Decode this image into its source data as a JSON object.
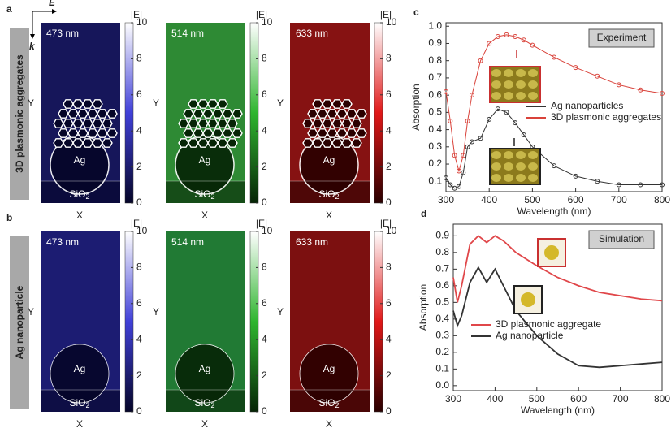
{
  "panels": [
    {
      "label": "a",
      "row_title": "3D plasmonic aggregates",
      "field": "E",
      "direction": "k",
      "aggregate": true,
      "maps": [
        {
          "wavelength": "473 nm",
          "background": "#16165a",
          "colormap": [
            "#050528",
            "#4040d8",
            "#ffffff"
          ]
        },
        {
          "wavelength": "514 nm",
          "background": "#2e8a34",
          "colormap": [
            "#062406",
            "#2fb52f",
            "#ffffff"
          ]
        },
        {
          "wavelength": "633 nm",
          "background": "#861212",
          "colormap": [
            "#2a0000",
            "#e01818",
            "#ffffff"
          ]
        }
      ]
    },
    {
      "label": "b",
      "row_title": "Ag nanoparticle",
      "aggregate": false,
      "maps": [
        {
          "wavelength": "473 nm",
          "background": "#1c1c72",
          "colormap": [
            "#050528",
            "#4040d8",
            "#ffffff"
          ]
        },
        {
          "wavelength": "514 nm",
          "background": "#217a34",
          "colormap": [
            "#062406",
            "#2fb52f",
            "#ffffff"
          ]
        },
        {
          "wavelength": "633 nm",
          "background": "#7c1010",
          "colormap": [
            "#2a0000",
            "#e01818",
            "#ffffff"
          ]
        }
      ]
    }
  ],
  "map_text": {
    "particle": "Ag",
    "substrate": "SiO",
    "substrate_sub": "2",
    "x_label": "X",
    "y_label": "Y",
    "colorbar_title": "|E|",
    "colorbar_lim": [
      0,
      10
    ],
    "colorbar_ticks": [
      0,
      2,
      4,
      6,
      8,
      10
    ]
  },
  "chart_data": [
    {
      "type": "line",
      "panel_label": "c",
      "annotation": "Experiment",
      "x_label": "Wavelength (nm)",
      "y_label": "Absorption",
      "x": [
        300,
        310,
        320,
        330,
        340,
        350,
        360,
        380,
        400,
        420,
        440,
        460,
        480,
        500,
        550,
        600,
        650,
        700,
        750,
        800
      ],
      "series": [
        {
          "name": "Ag nanoparticles",
          "color": "#333333",
          "values": [
            0.12,
            0.08,
            0.06,
            0.07,
            0.15,
            0.3,
            0.33,
            0.35,
            0.46,
            0.52,
            0.5,
            0.44,
            0.37,
            0.3,
            0.19,
            0.13,
            0.1,
            0.08,
            0.08,
            0.08
          ]
        },
        {
          "name": "3D plasmonic aggregates",
          "color": "#d9423a",
          "values": [
            0.62,
            0.45,
            0.25,
            0.16,
            0.25,
            0.45,
            0.6,
            0.8,
            0.9,
            0.94,
            0.95,
            0.94,
            0.92,
            0.89,
            0.82,
            0.76,
            0.71,
            0.66,
            0.63,
            0.61
          ]
        }
      ],
      "xlim": [
        300,
        800
      ],
      "xticks": [
        300,
        400,
        500,
        600,
        700,
        800
      ],
      "ylim": [
        0.04,
        1.02
      ],
      "yticks": [
        {
          "value": 0.1,
          "label": "0.1"
        },
        {
          "value": 0.2,
          "label": "0.2"
        },
        {
          "value": 0.3,
          "label": "0.3"
        },
        {
          "value": 0.4,
          "label": "0.4"
        },
        {
          "value": 0.5,
          "label": "0.5"
        },
        {
          "value": 0.6,
          "label": "0.6"
        },
        {
          "value": 0.7,
          "label": "0.7"
        },
        {
          "value": 0.8,
          "label": "0.8"
        },
        {
          "value": 0.9,
          "label": "0.9"
        },
        {
          "value": 1.0,
          "label": "1.0"
        }
      ],
      "markers": true
    },
    {
      "type": "line",
      "panel_label": "d",
      "annotation": "Simulation",
      "x_label": "Wavelength (nm)",
      "y_label": "Absorption",
      "x": [
        300,
        310,
        320,
        340,
        360,
        380,
        400,
        420,
        450,
        500,
        550,
        600,
        650,
        700,
        750,
        800
      ],
      "series": [
        {
          "name": "3D plasmonic aggregate",
          "color": "#e0474a",
          "values": [
            0.65,
            0.5,
            0.6,
            0.85,
            0.9,
            0.86,
            0.9,
            0.87,
            0.8,
            0.72,
            0.65,
            0.6,
            0.56,
            0.54,
            0.52,
            0.51
          ]
        },
        {
          "name": "Ag nanoparticle",
          "color": "#333333",
          "values": [
            0.45,
            0.36,
            0.42,
            0.62,
            0.71,
            0.62,
            0.7,
            0.6,
            0.45,
            0.3,
            0.19,
            0.12,
            0.11,
            0.12,
            0.13,
            0.14
          ]
        }
      ],
      "xlim": [
        300,
        800
      ],
      "xticks": [
        300,
        400,
        500,
        600,
        700,
        800
      ],
      "ylim": [
        -0.03,
        0.97
      ],
      "yticks": [
        {
          "value": 0,
          "label": "0.0"
        },
        {
          "value": 0.1,
          "label": "0.1"
        },
        {
          "value": 0.2,
          "label": "0.2"
        },
        {
          "value": 0.3,
          "label": "0.3"
        },
        {
          "value": 0.4,
          "label": "0.4"
        },
        {
          "value": 0.5,
          "label": "0.5"
        },
        {
          "value": 0.6,
          "label": "0.6"
        },
        {
          "value": 0.7,
          "label": "0.7"
        },
        {
          "value": 0.8,
          "label": "0.8"
        },
        {
          "value": 0.9,
          "label": "0.9"
        }
      ],
      "markers": false
    }
  ]
}
